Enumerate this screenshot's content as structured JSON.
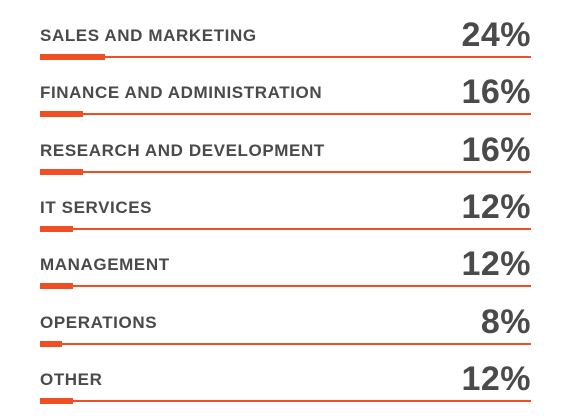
{
  "colors": {
    "accent": "#f04e23",
    "text": "#4a4a4a",
    "background": "#ffffff"
  },
  "chart_data": {
    "type": "bar",
    "orientation": "horizontal",
    "unit": "%",
    "max": 100,
    "categories": [
      "SALES AND MARKETING",
      "FINANCE AND ADMINISTRATION",
      "RESEARCH AND DEVELOPMENT",
      "IT SERVICES",
      "MANAGEMENT",
      "OPERATIONS",
      "OTHER"
    ],
    "values": [
      24,
      16,
      16,
      12,
      12,
      8,
      12
    ],
    "value_labels": [
      "24%",
      "16%",
      "16%",
      "12%",
      "12%",
      "8%",
      "12%"
    ],
    "grid": false,
    "legend": "none"
  }
}
